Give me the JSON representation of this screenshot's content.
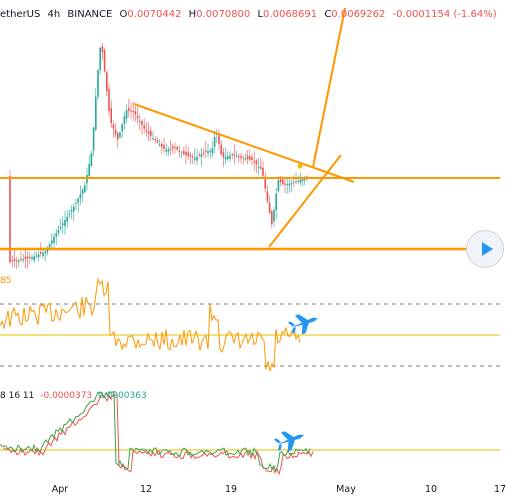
{
  "header": {
    "symbol": "etherUS",
    "interval": "4h",
    "exchange": "BINANCE",
    "open_key": "O",
    "open": "0.0070442",
    "high_key": "H",
    "high": "0.0070800",
    "low_key": "L",
    "low": "0.0068691",
    "close_key": "C",
    "close": "0.0069262",
    "change": "-0.0001154 (-1.64%)"
  },
  "rsi_pane": {
    "label": "85"
  },
  "macd_pane": {
    "params": "8 16 11",
    "value_red": "-0.0000373",
    "value_green": "0.0000363"
  },
  "x_axis": {
    "ticks": [
      "Apr",
      "12",
      "19",
      "May",
      "10",
      "17"
    ]
  },
  "icons": {
    "airplane_top": "airplane-icon",
    "airplane_bottom": "airplane-icon",
    "play": "play-icon"
  },
  "colors": {
    "up": "#26a69a",
    "down": "#ef5350",
    "trendline": "#ff9800",
    "rsi": "#ff9800",
    "macd_line": "#43a047",
    "signal_line": "#ef5350",
    "airplane": "#2196f3"
  }
}
